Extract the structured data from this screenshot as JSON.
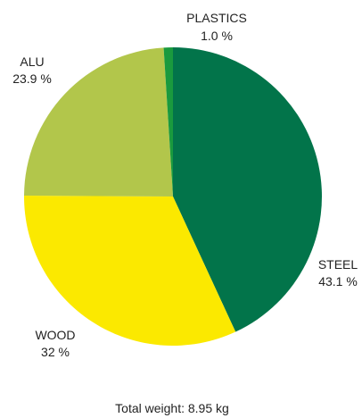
{
  "chart_data": {
    "type": "pie",
    "categories": [
      "STEEL",
      "WOOD",
      "ALU",
      "PLASTICS"
    ],
    "values": [
      43.1,
      32,
      23.9,
      1.0
    ],
    "value_labels": [
      "43.1 %",
      "32 %",
      "23.9 %",
      "1.0 %"
    ],
    "colors": {
      "STEEL": "#02744a",
      "WOOD": "#fbe900",
      "ALU": "#b2c64b",
      "PLASTICS": "#1a9a3e"
    },
    "start": "12 o'clock",
    "direction": "clockwise",
    "legend": "none",
    "footer": "Total weight: 8.95 kg"
  }
}
